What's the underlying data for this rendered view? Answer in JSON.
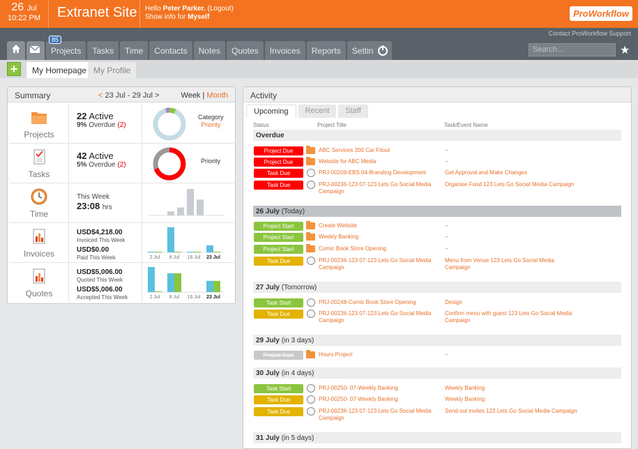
{
  "header": {
    "day": "26",
    "month": "Jul",
    "time": "10:22 PM",
    "site_title": "Extranet Site",
    "hello_prefix": "Hello",
    "user_name": "Peter Parker.",
    "logout": "(Logout)",
    "show_info": "Show info for",
    "show_for": "Myself",
    "logo": "ProWorkflow"
  },
  "nav": {
    "support_link": "Contact ProWorkflow Support",
    "mail_badge": "85",
    "items": [
      "Projects",
      "Tasks",
      "Time",
      "Contacts",
      "Notes",
      "Quotes",
      "Invoices",
      "Reports",
      "Settings"
    ],
    "search_placeholder": "Search..."
  },
  "subtabs": {
    "plus": "+",
    "home": "My Homepage",
    "profile": "My Profile"
  },
  "summary": {
    "title": "Summary",
    "range_prev": "<",
    "range": "23 Jul - 29 Jul",
    "range_next": ">",
    "week": "Week",
    "sep": "|",
    "month": "Month",
    "projects": {
      "label": "Projects",
      "active_num": "22",
      "active": "Active",
      "overdue_pct": "9%",
      "overdue": "Overdue",
      "overdue_num": "(2)",
      "right1": "Category",
      "right2": "Priority"
    },
    "tasks": {
      "label": "Tasks",
      "active_num": "42",
      "active": "Active",
      "overdue_pct": "5%",
      "overdue": "Overdue",
      "overdue_num": "(2)",
      "right1": "Priority"
    },
    "time": {
      "label": "Time",
      "week": "This Week",
      "hours": "23:08",
      "unit": "hrs",
      "bars": [
        0.15,
        0.3,
        1.0,
        0.6
      ]
    },
    "invoices": {
      "label": "Invoices",
      "amt1": "USD$4,218.00",
      "lbl1": "Invoiced This Week",
      "amt2": "USD$0.00",
      "lbl2": "Paid This Week",
      "ticks": [
        "2 Jul",
        "9 Jul",
        "16 Jul",
        "23 Jul"
      ],
      "bars": [
        [
          0.02,
          0.02
        ],
        [
          1.0,
          0.02
        ],
        [
          0.02,
          0.02
        ],
        [
          0.28,
          0.02
        ]
      ]
    },
    "quotes": {
      "label": "Quotes",
      "amt1": "USD$5,006.00",
      "lbl1": "Quoted This Week",
      "amt2": "USD$5,006.00",
      "lbl2": "Accepted This Week",
      "ticks": [
        "2 Jul",
        "9 Jul",
        "16 Jul",
        "23 Jul"
      ],
      "bars": [
        [
          1.0,
          0.02
        ],
        [
          0.75,
          0.75
        ],
        [
          0.0,
          0.0
        ],
        [
          0.45,
          0.45
        ]
      ]
    }
  },
  "activity": {
    "title": "Activity",
    "tabs": [
      "Upcoming",
      "Recent",
      "Staff"
    ],
    "col_status": "Status",
    "col_project": "Project Title",
    "col_task": "Task/Event Name",
    "sections": [
      {
        "title": "Overdue",
        "sub": ""
      },
      {
        "title": "26 July",
        "sub": "(Today)"
      },
      {
        "title": "27 July",
        "sub": "(Tomorrow)"
      },
      {
        "title": "29 July",
        "sub": "(in 3 days)"
      },
      {
        "title": "30 July",
        "sub": "(in 4 days)"
      },
      {
        "title": "31 July",
        "sub": "(in 5 days)"
      }
    ],
    "rows": [
      {
        "status": "Project Due",
        "kind": "pd",
        "icon": "folder",
        "project": "ABC Services 200 Car Fitout",
        "task": "--"
      },
      {
        "status": "Project Due",
        "kind": "pd",
        "icon": "folder",
        "project": "Website for ABC Media",
        "task": "--"
      },
      {
        "status": "Task Due",
        "kind": "pd",
        "icon": "circle",
        "project": "PRJ-00209-EBS 04-Branding Development",
        "task": "Get Approval and Make Changes"
      },
      {
        "status": "Task Due",
        "kind": "pd",
        "icon": "circle",
        "project": "PRJ-00236-123 07-123 Lets Go Social Media Campaign",
        "task": "Organise Food 123 Lets Go Social Media Campaign"
      },
      {
        "status": "Project Start",
        "kind": "ps",
        "icon": "folder",
        "project": "Create Website",
        "task": "--"
      },
      {
        "status": "Project Start",
        "kind": "ps",
        "icon": "folder",
        "project": "Weekly Banking",
        "task": "--"
      },
      {
        "status": "Project Start",
        "kind": "ps",
        "icon": "folder",
        "project": "Comic Book Store Opening",
        "task": "--"
      },
      {
        "status": "Task Due",
        "kind": "pt",
        "icon": "circle",
        "project": "PRJ-00236-123 07-123 Lets Go Social Media Campaign",
        "task": "Menu from Venue 123 Lets Go Social Media Campaign"
      },
      {
        "status": "Task Start",
        "kind": "ps",
        "icon": "circle",
        "project": "PRJ-00248-Comic Book Store Opening",
        "task": "Design"
      },
      {
        "status": "Task Due",
        "kind": "pt",
        "icon": "circle",
        "project": "PRJ-00236-123 07-123 Lets Go Social Media Campaign",
        "task": "Confirm menu with guest 123 Lets Go Social Media Campaign"
      },
      {
        "status": "Project Start",
        "kind": "pg",
        "icon": "folder",
        "project": "Hours Project",
        "task": "--"
      },
      {
        "status": "Task Start",
        "kind": "ps",
        "icon": "circle",
        "project": "PRJ-00250- 07-Weekly Banking",
        "task": "Weekly Banking"
      },
      {
        "status": "Task Due",
        "kind": "pt",
        "icon": "circle",
        "project": "PRJ-00250- 07-Weekly Banking",
        "task": "Weekly Banking"
      },
      {
        "status": "Task Due",
        "kind": "pt",
        "icon": "circle",
        "project": "PRJ-00236-123 07-123 Lets Go Social Media Campaign",
        "task": "Send out invites 123 Lets Go Social Media Campaign"
      }
    ]
  }
}
